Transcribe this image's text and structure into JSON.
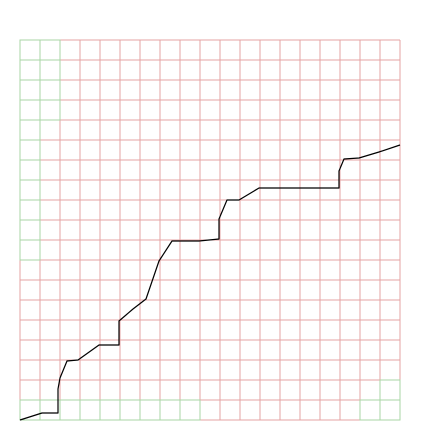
{
  "chart_data": {
    "type": "line",
    "grid": true,
    "grid_divisions": 19,
    "xlim": [
      0,
      19
    ],
    "ylim": [
      0,
      19
    ],
    "colors": {
      "background": "#ffffff",
      "grid_red": "#e4a3a3",
      "grid_green": "#a9d6a5",
      "line": "#000000"
    },
    "green_cells": [
      [
        0,
        0
      ],
      [
        1,
        0
      ],
      [
        2,
        0
      ],
      [
        3,
        0
      ],
      [
        4,
        0
      ],
      [
        5,
        0
      ],
      [
        6,
        0
      ],
      [
        7,
        0
      ],
      [
        8,
        0
      ],
      [
        0,
        8
      ],
      [
        0,
        9
      ],
      [
        0,
        10
      ],
      [
        0,
        11
      ],
      [
        0,
        12
      ],
      [
        0,
        13
      ],
      [
        0,
        14
      ],
      [
        0,
        15
      ],
      [
        0,
        16
      ],
      [
        0,
        17
      ],
      [
        0,
        18
      ],
      [
        1,
        15
      ],
      [
        1,
        16
      ],
      [
        1,
        17
      ],
      [
        1,
        18
      ],
      [
        18,
        0
      ],
      [
        18,
        1
      ],
      [
        17,
        0
      ]
    ],
    "series": [
      {
        "values": [
          [
            0.0,
            0.0
          ],
          [
            1.1,
            0.35
          ],
          [
            1.9,
            0.35
          ],
          [
            1.9,
            1.55
          ],
          [
            2.0,
            2.1
          ],
          [
            2.35,
            2.95
          ],
          [
            2.9,
            3.0
          ],
          [
            3.95,
            3.75
          ],
          [
            4.95,
            3.75
          ],
          [
            4.95,
            4.95
          ],
          [
            5.65,
            5.55
          ],
          [
            6.3,
            6.05
          ],
          [
            6.95,
            7.95
          ],
          [
            7.6,
            8.95
          ],
          [
            8.95,
            8.95
          ],
          [
            9.95,
            9.05
          ],
          [
            9.95,
            10.05
          ],
          [
            10.35,
            11.0
          ],
          [
            10.95,
            11.0
          ],
          [
            11.95,
            11.6
          ],
          [
            12.95,
            11.6
          ],
          [
            13.95,
            11.6
          ],
          [
            15.95,
            11.6
          ],
          [
            15.95,
            12.45
          ],
          [
            16.2,
            13.05
          ],
          [
            16.95,
            13.1
          ],
          [
            17.95,
            13.4
          ],
          [
            19.0,
            13.75
          ]
        ]
      }
    ]
  }
}
